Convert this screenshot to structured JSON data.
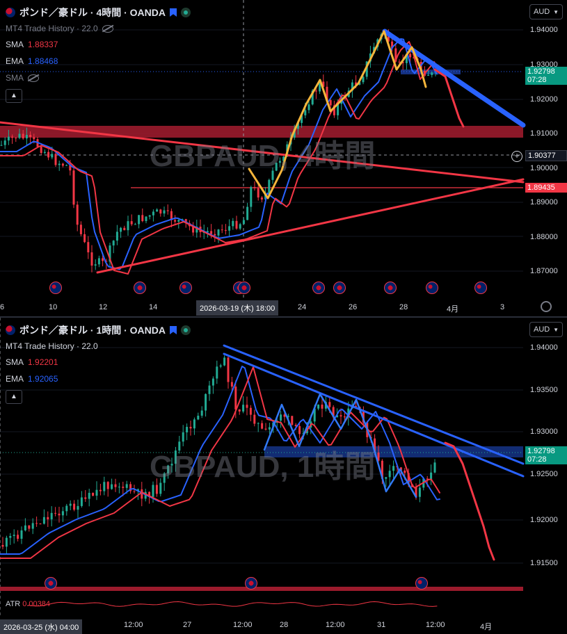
{
  "top": {
    "title": "ポンド／豪ドル · 4時間 · OANDA",
    "indicator_trade": "MT4 Trade History · 22.0",
    "sma_label": "SMA",
    "sma_value": "1.88337",
    "ema_label": "EMA",
    "ema_value": "1.88468",
    "sma2_label": "SMA",
    "watermark": "GBPAUD, 4時間",
    "currency": "AUD",
    "price_ticks": [
      "1.94000",
      "1.93000",
      "1.92000",
      "1.91000",
      "1.90000",
      "1.89000",
      "1.88000",
      "1.87000"
    ],
    "current_price": "1.92798",
    "countdown": "07:28",
    "cursor_price": "1.90377",
    "level_price": "1.89435",
    "time_ticks": [
      "6",
      "10",
      "12",
      "14",
      "24",
      "26",
      "28",
      "4月",
      "3"
    ],
    "cursor_time": "2026-03-19 (木)   18:00"
  },
  "bottom": {
    "title": "ポンド／豪ドル · 1時間 · OANDA",
    "indicator_trade": "MT4 Trade History · 22.0",
    "sma_label": "SMA",
    "sma_value": "1.92201",
    "ema_label": "EMA",
    "ema_value": "1.92065",
    "watermark": "GBPAUD, 1時間",
    "currency": "AUD",
    "price_ticks": [
      "1.94000",
      "1.93500",
      "1.93000",
      "1.92500",
      "1.92000",
      "1.91500"
    ],
    "current_price": "1.92798",
    "countdown": "07:28",
    "atr_label": "ATR",
    "atr_value": "0.00384",
    "time_ticks": [
      "12:00",
      "27",
      "12:00",
      "28",
      "12:00",
      "31",
      "12:00",
      "4月"
    ],
    "cursor_time": "2026-03-25 (水)   04:00"
  },
  "colors": {
    "up": "#22ab94",
    "down": "#f23645",
    "ema": "#2962ff",
    "sma": "#f23645",
    "draw_yellow": "#f5b53b",
    "draw_red": "#f23645",
    "draw_blue": "#2962ff"
  },
  "icons": [
    "uk-flag-icon",
    "bookmark-icon",
    "status-dot-icon",
    "eye-hidden-icon",
    "chevron-up-icon",
    "chevron-down-icon",
    "settings-gear-icon",
    "plus-icon",
    "event-flag-icon"
  ]
}
